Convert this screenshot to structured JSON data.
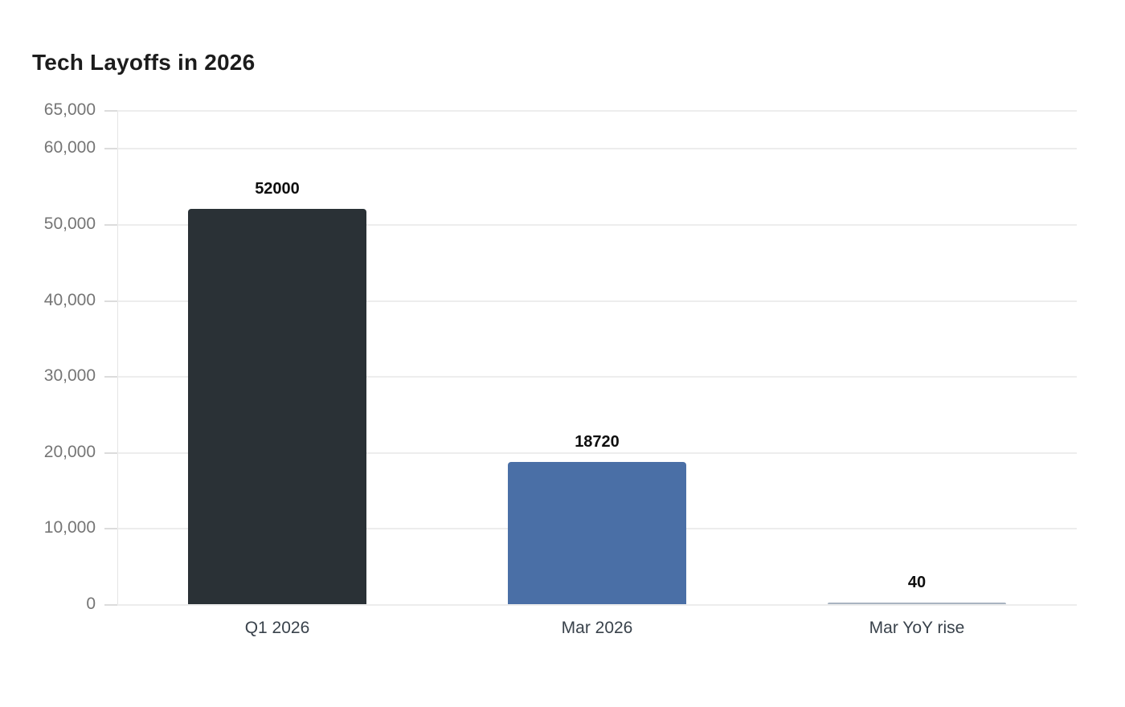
{
  "page": {
    "background": "#ffffff"
  },
  "chart_data": {
    "type": "bar",
    "title": "Tech Layoffs in 2026",
    "categories": [
      "Q1 2026",
      "Mar 2026",
      "Mar YoY rise"
    ],
    "values": [
      52000,
      18720,
      40
    ],
    "data_labels": [
      "52000",
      "18720",
      "40"
    ],
    "bar_colors": [
      "#2a3136",
      "#4a6fa6",
      "#a9b4c1"
    ],
    "xlabel": "",
    "ylabel": "",
    "ylim": [
      0,
      65000
    ],
    "yticks": [
      0,
      10000,
      20000,
      30000,
      40000,
      50000,
      60000,
      65000
    ],
    "ytick_labels": [
      "0",
      "10,000",
      "20,000",
      "30,000",
      "40,000",
      "50,000",
      "60,000",
      "65,000"
    ],
    "grid": true,
    "legend": false,
    "styles": {
      "title_color": "#1c1c1c",
      "gridline_color": "#ededed",
      "axis_line_color": "#e4e4e4",
      "ytick_label_color": "#757575",
      "xtick_label_color": "#39424b",
      "data_label_color": "#0f0f0f"
    }
  }
}
